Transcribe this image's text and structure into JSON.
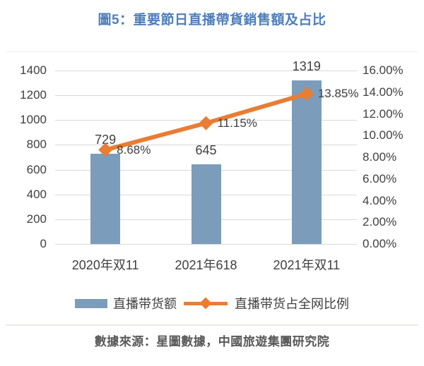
{
  "title": "圖5：重要節日直播帶貨銷售額及占比",
  "source_note": "數據來源：星圖數據，中國旅遊集團研究院",
  "colors": {
    "title": "#4E7EBB",
    "bar": "#7B9CBB",
    "line": "#E87D33",
    "axis_text": "#404040",
    "gridline": "#D9D9D9",
    "source_text": "#595959"
  },
  "legend": {
    "bar_label": "直播带货额",
    "line_label": "直播带货占全网比例"
  },
  "chart_data": {
    "type": "bar",
    "subtype": "combo-bar-line",
    "title": "圖5：重要節日直播帶貨銷售額及占比",
    "categories": [
      "2020年双11",
      "2021年618",
      "2021年双11"
    ],
    "series": [
      {
        "name": "直播带货额",
        "type": "bar",
        "axis": "left",
        "values": [
          729,
          645,
          1319
        ],
        "labels": [
          "729",
          "645",
          "1319"
        ]
      },
      {
        "name": "直播带货占全网比例",
        "type": "line",
        "axis": "right",
        "values": [
          8.68,
          11.15,
          13.85
        ],
        "labels": [
          "8.68%",
          "11.15%",
          "13.85%"
        ]
      }
    ],
    "left_axis": {
      "min": 0,
      "max": 1400,
      "step": 200,
      "ticks": [
        "1400",
        "1200",
        "1000",
        "800",
        "600",
        "400",
        "200",
        "0"
      ]
    },
    "right_axis": {
      "min": 0,
      "max": 16,
      "step": 2,
      "ticks": [
        "16.00%",
        "14.00%",
        "12.00%",
        "10.00%",
        "8.00%",
        "6.00%",
        "4.00%",
        "2.00%",
        "0.00%"
      ]
    },
    "grid": true,
    "legend_position": "bottom"
  }
}
